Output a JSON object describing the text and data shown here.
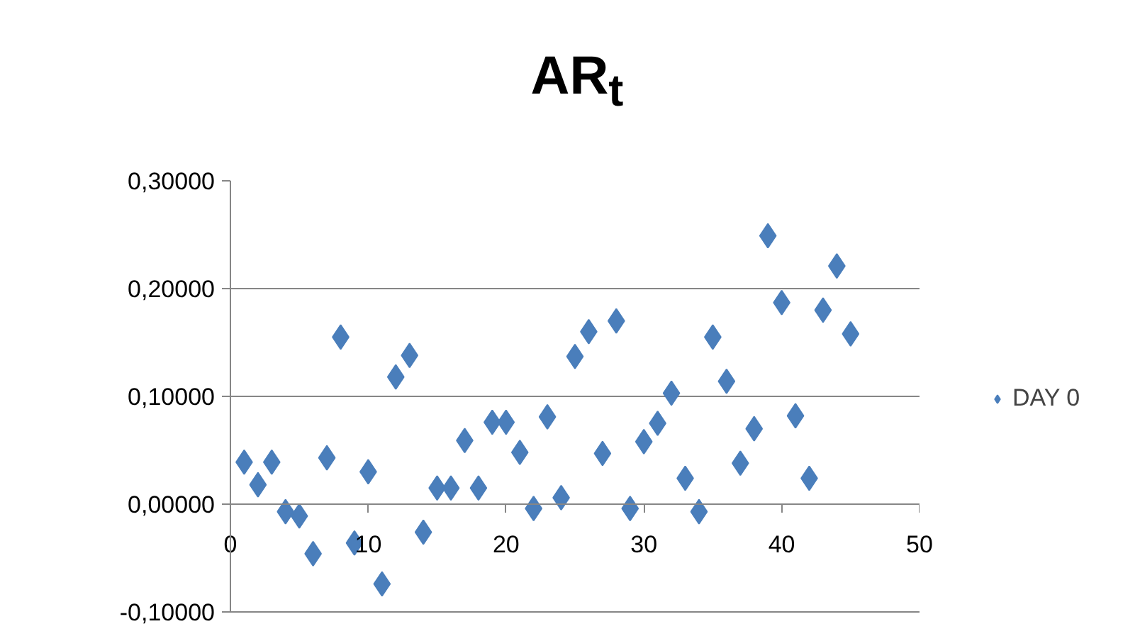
{
  "chart_data": {
    "type": "scatter",
    "title": "AR$_{t}$",
    "x": [
      1,
      2,
      3,
      4,
      5,
      6,
      7,
      8,
      9,
      10,
      11,
      12,
      13,
      14,
      15,
      16,
      17,
      18,
      19,
      20,
      21,
      22,
      23,
      24,
      25,
      26,
      27,
      28,
      29,
      30,
      31,
      32,
      33,
      34,
      35,
      36,
      37,
      38,
      39,
      40,
      41,
      42,
      43,
      44,
      45
    ],
    "series": [
      {
        "name": "DAY 0",
        "color": "#4a7ebb",
        "values": [
          0.039,
          0.018,
          0.039,
          -0.007,
          -0.011,
          -0.046,
          0.043,
          0.155,
          -0.036,
          0.03,
          -0.074,
          0.118,
          0.138,
          -0.026,
          0.015,
          0.015,
          0.059,
          0.015,
          0.076,
          0.076,
          0.048,
          -0.004,
          0.081,
          0.006,
          0.137,
          0.16,
          0.047,
          0.17,
          -0.004,
          0.058,
          0.075,
          0.103,
          0.024,
          -0.007,
          0.155,
          0.114,
          0.038,
          0.07,
          0.249,
          0.187,
          0.082,
          0.024,
          0.18,
          0.221,
          0.158
        ]
      }
    ],
    "xlim": [
      0,
      50
    ],
    "xticks": [
      0,
      10,
      20,
      30,
      40,
      50
    ],
    "ylim": [
      -0.1,
      0.3
    ],
    "yticks": [
      {
        "value": -0.1,
        "label": "-0,10000"
      },
      {
        "value": 0,
        "label": "0,00000"
      },
      {
        "value": 0.1,
        "label": "0,10000"
      },
      {
        "value": 0.2,
        "label": "0,20000"
      },
      {
        "value": 0.3,
        "label": "0,30000"
      }
    ],
    "grid": "y",
    "legend": "right",
    "marker": "diamond"
  }
}
